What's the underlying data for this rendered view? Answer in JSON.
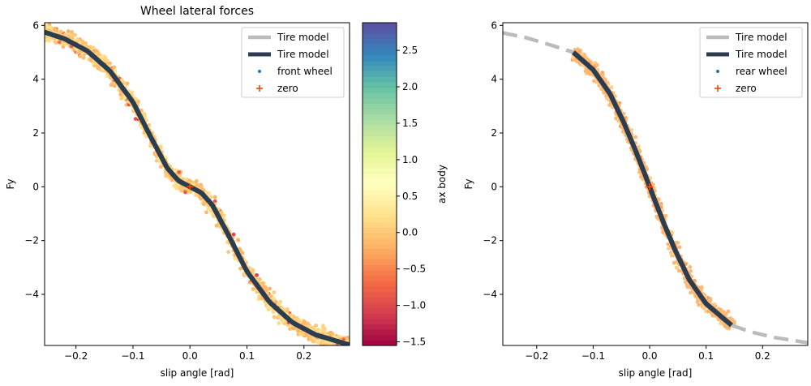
{
  "chart_data": [
    {
      "type": "scatter",
      "title": "Wheel lateral forces",
      "xlabel": "slip angle [rad]",
      "ylabel": "Fy",
      "xlim": [
        -0.255,
        0.28
      ],
      "ylim": [
        -5.9,
        6.1
      ],
      "xticks": [
        -0.2,
        -0.1,
        0.0,
        0.1,
        0.2
      ],
      "xtick_labels": [
        "−0.2",
        "−0.1",
        "0.0",
        "0.1",
        "0.2"
      ],
      "yticks": [
        -4,
        -2,
        0,
        2,
        4,
        6
      ],
      "ytick_labels": [
        "−4",
        "−2",
        "0",
        "2",
        "4",
        "6"
      ],
      "grid": false,
      "legend_position": "top-right",
      "legend": [
        {
          "label": "Tire model",
          "style": "dashed-gray-line"
        },
        {
          "label": "Tire model",
          "style": "solid-dark-line"
        },
        {
          "label": "front wheel",
          "style": "dot"
        },
        {
          "label": "zero",
          "style": "plus"
        }
      ],
      "series": [
        {
          "name": "Tire model",
          "kind": "model-curve",
          "color": "#bbbbbb",
          "dashed": true,
          "x": [
            -0.255,
            -0.22,
            -0.18,
            -0.14,
            -0.1,
            -0.07,
            -0.04,
            -0.02,
            0.0,
            0.02,
            0.04,
            0.07,
            0.1,
            0.14,
            0.18,
            0.22,
            0.28
          ],
          "y": [
            5.75,
            5.5,
            5.05,
            4.3,
            3.15,
            1.9,
            0.7,
            0.22,
            0.0,
            -0.22,
            -0.7,
            -1.9,
            -3.15,
            -4.3,
            -5.05,
            -5.5,
            -5.88
          ]
        },
        {
          "name": "Tire model",
          "kind": "model-curve",
          "color": "#2b3d4f",
          "dashed": false,
          "x": [
            -0.255,
            -0.22,
            -0.18,
            -0.14,
            -0.1,
            -0.07,
            -0.04,
            -0.02,
            0.0,
            0.02,
            0.04,
            0.07,
            0.1,
            0.14,
            0.18,
            0.22,
            0.28
          ],
          "y": [
            5.75,
            5.5,
            5.05,
            4.3,
            3.15,
            1.9,
            0.7,
            0.22,
            0.0,
            -0.22,
            -0.7,
            -1.9,
            -3.15,
            -4.3,
            -5.05,
            -5.5,
            -5.88
          ]
        },
        {
          "name": "front wheel",
          "kind": "scatter-band",
          "x_range": [
            -0.255,
            0.28
          ],
          "color_by": "ax body"
        },
        {
          "name": "zero",
          "kind": "marker",
          "color": "#ff4400",
          "x": [
            0.0
          ],
          "y": [
            0.0
          ]
        }
      ],
      "colorbar": {
        "label": "ax body",
        "range": [
          -1.55,
          2.88
        ],
        "ticks": [
          -1.5,
          -1.0,
          -0.5,
          0.0,
          0.5,
          1.0,
          1.5,
          2.0,
          2.5
        ],
        "tick_labels": [
          "−1.5",
          "−1.0",
          "−0.5",
          "0.0",
          "0.5",
          "1.0",
          "1.5",
          "2.0",
          "2.5"
        ],
        "colormap": [
          "#9e0142",
          "#d53e4f",
          "#f46d43",
          "#fdae61",
          "#fee08b",
          "#ffffbf",
          "#e6f598",
          "#abdda4",
          "#66c2a5",
          "#3288bd",
          "#5e4fa2"
        ]
      }
    },
    {
      "type": "scatter",
      "title": "",
      "xlabel": "slip angle [rad]",
      "ylabel": "Fy",
      "xlim": [
        -0.26,
        0.28
      ],
      "ylim": [
        -5.9,
        6.1
      ],
      "xticks": [
        -0.2,
        -0.1,
        0.0,
        0.1,
        0.2
      ],
      "xtick_labels": [
        "−0.2",
        "−0.1",
        "0.0",
        "0.1",
        "0.2"
      ],
      "yticks": [
        -4,
        -2,
        0,
        2,
        4,
        6
      ],
      "ytick_labels": [
        "−4",
        "−2",
        "0",
        "2",
        "4",
        "6"
      ],
      "grid": false,
      "legend_position": "top-right",
      "legend": [
        {
          "label": "Tire model",
          "style": "dashed-gray-line"
        },
        {
          "label": "Tire model",
          "style": "solid-dark-line"
        },
        {
          "label": "rear wheel",
          "style": "dot"
        },
        {
          "label": "zero",
          "style": "plus"
        }
      ],
      "series": [
        {
          "name": "Tire model",
          "kind": "model-curve",
          "color": "#bbbbbb",
          "dashed": true,
          "x": [
            -0.26,
            -0.22,
            -0.18,
            -0.135,
            -0.1,
            -0.07,
            -0.045,
            -0.025,
            -0.01,
            0.0,
            0.01,
            0.025,
            0.045,
            0.07,
            0.1,
            0.145,
            0.18,
            0.22,
            0.28
          ],
          "y": [
            5.72,
            5.55,
            5.3,
            5.0,
            4.35,
            3.45,
            2.35,
            1.35,
            0.55,
            0.0,
            -0.55,
            -1.35,
            -2.35,
            -3.45,
            -4.35,
            -5.15,
            -5.4,
            -5.6,
            -5.8
          ]
        },
        {
          "name": "Tire model",
          "kind": "model-curve",
          "color": "#2b3d4f",
          "dashed": false,
          "x": [
            -0.135,
            -0.1,
            -0.07,
            -0.045,
            -0.025,
            -0.01,
            0.0,
            0.01,
            0.025,
            0.045,
            0.07,
            0.1,
            0.145
          ],
          "y": [
            5.0,
            4.35,
            3.45,
            2.35,
            1.35,
            0.55,
            0.0,
            -0.55,
            -1.35,
            -2.35,
            -3.45,
            -4.35,
            -5.15
          ]
        },
        {
          "name": "rear wheel",
          "kind": "scatter-band",
          "x_range": [
            -0.135,
            0.145
          ]
        },
        {
          "name": "zero",
          "kind": "marker",
          "color": "#ff4400",
          "x": [
            0.0
          ],
          "y": [
            0.0
          ]
        }
      ]
    }
  ]
}
